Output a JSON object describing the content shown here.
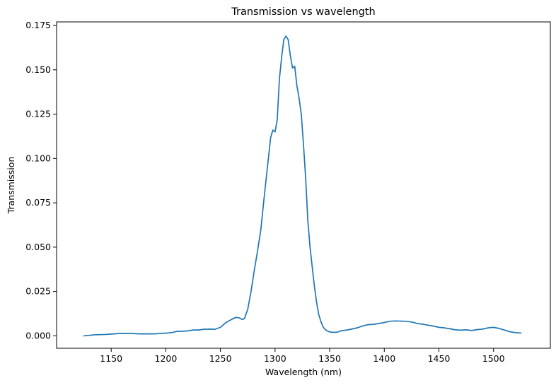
{
  "chart_data": {
    "type": "line",
    "title": "Transmission vs wavelength",
    "xlabel": "Wavelength (nm)",
    "ylabel": "Transmission",
    "xlim": [
      1100,
      1552
    ],
    "ylim": [
      -0.007,
      0.177
    ],
    "xticks": [
      1150,
      1200,
      1250,
      1300,
      1350,
      1400,
      1450,
      1500
    ],
    "xtick_labels": [
      "1150",
      "1200",
      "1250",
      "1300",
      "1350",
      "1400",
      "1450",
      "1500"
    ],
    "yticks": [
      0.0,
      0.025,
      0.05,
      0.075,
      0.1,
      0.125,
      0.15,
      0.175
    ],
    "ytick_labels": [
      "0.000",
      "0.025",
      "0.050",
      "0.075",
      "0.100",
      "0.125",
      "0.150",
      "0.175"
    ],
    "grid": false,
    "legend": "none",
    "colors": {
      "line": "#1f77b4"
    },
    "series": [
      {
        "x": [
          1125,
          1130,
          1135,
          1140,
          1145,
          1150,
          1155,
          1160,
          1165,
          1170,
          1175,
          1180,
          1185,
          1190,
          1195,
          1200,
          1205,
          1210,
          1215,
          1220,
          1225,
          1230,
          1235,
          1240,
          1245,
          1250,
          1255,
          1260,
          1264,
          1267,
          1270,
          1272,
          1275,
          1278,
          1281,
          1284,
          1287,
          1290,
          1293,
          1296,
          1298,
          1300,
          1302,
          1304,
          1306,
          1308,
          1310,
          1312,
          1314,
          1316,
          1318,
          1320,
          1322,
          1324,
          1326,
          1328,
          1330,
          1332,
          1334,
          1336,
          1338,
          1340,
          1342,
          1344,
          1346,
          1348,
          1350,
          1352,
          1354,
          1356,
          1358,
          1360,
          1365,
          1370,
          1375,
          1380,
          1385,
          1390,
          1395,
          1400,
          1405,
          1410,
          1415,
          1420,
          1425,
          1430,
          1435,
          1440,
          1445,
          1450,
          1455,
          1460,
          1465,
          1470,
          1475,
          1480,
          1485,
          1490,
          1495,
          1500,
          1505,
          1510,
          1515,
          1520,
          1525
        ],
        "y": [
          0.0,
          0.0003,
          0.0006,
          0.0007,
          0.0008,
          0.001,
          0.0012,
          0.0014,
          0.0013,
          0.0013,
          0.0011,
          0.0011,
          0.0011,
          0.0011,
          0.0014,
          0.0015,
          0.0018,
          0.0025,
          0.0026,
          0.0028,
          0.0033,
          0.0033,
          0.0037,
          0.0038,
          0.0037,
          0.0048,
          0.0075,
          0.0092,
          0.0104,
          0.0102,
          0.0092,
          0.0098,
          0.015,
          0.025,
          0.037,
          0.048,
          0.06,
          0.078,
          0.095,
          0.112,
          0.116,
          0.115,
          0.122,
          0.145,
          0.157,
          0.167,
          0.169,
          0.167,
          0.158,
          0.151,
          0.152,
          0.141,
          0.134,
          0.125,
          0.108,
          0.089,
          0.065,
          0.05,
          0.039,
          0.028,
          0.019,
          0.012,
          0.008,
          0.005,
          0.0035,
          0.0027,
          0.0022,
          0.002,
          0.002,
          0.002,
          0.0023,
          0.0028,
          0.0032,
          0.0038,
          0.0045,
          0.0055,
          0.0063,
          0.0065,
          0.007,
          0.0075,
          0.0082,
          0.0084,
          0.0083,
          0.0082,
          0.0078,
          0.007,
          0.0066,
          0.006,
          0.0055,
          0.0048,
          0.0045,
          0.004,
          0.0034,
          0.0032,
          0.0034,
          0.003,
          0.0035,
          0.0038,
          0.0045,
          0.0048,
          0.0042,
          0.0033,
          0.0023,
          0.0018,
          0.0016
        ]
      }
    ]
  }
}
